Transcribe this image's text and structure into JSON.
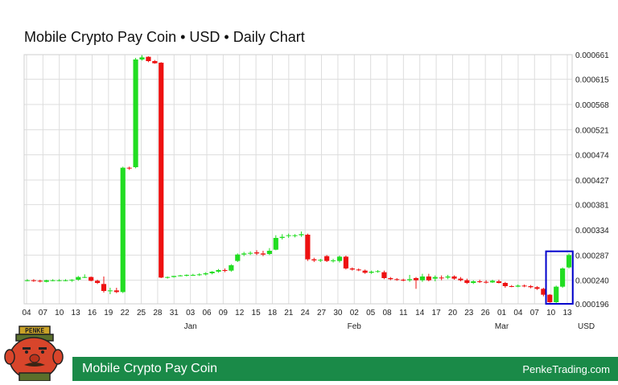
{
  "title": "Mobile Crypto Pay Coin • USD • Daily Chart",
  "footer": {
    "coin_name": "Mobile Crypto Pay Coin",
    "site": "PenkeTrading.com"
  },
  "mascot": {
    "badge_text": "PENKE"
  },
  "colors": {
    "up": "#22dd22",
    "down": "#ee1111",
    "highlight": "#0000cc",
    "grid": "#dddddd",
    "footer_bg": "#1a8a48"
  },
  "chart_data": {
    "type": "candlestick",
    "currency_label": "USD",
    "y_ticks": [
      "0.000196",
      "0.000240",
      "0.000287",
      "0.000334",
      "0.000381",
      "0.000427",
      "0.000474",
      "0.000521",
      "0.000568",
      "0.000615",
      "0.000661"
    ],
    "ylim": [
      0.000196,
      0.000661
    ],
    "grid": true,
    "x_tick_labels": [
      "04",
      "07",
      "10",
      "13",
      "16",
      "19",
      "22",
      "25",
      "28",
      "31",
      "03",
      "06",
      "09",
      "12",
      "15",
      "18",
      "21",
      "24",
      "27",
      "30",
      "02",
      "05",
      "08",
      "11",
      "14",
      "17",
      "20",
      "23",
      "26",
      "01",
      "04",
      "07",
      "10",
      "13"
    ],
    "month_labels": [
      {
        "label": "Jan",
        "at_index": 10
      },
      {
        "label": "Feb",
        "at_index": 20
      },
      {
        "label": "Mar",
        "at_index": 29
      }
    ],
    "candles": [
      {
        "o": 0.00024,
        "h": 0.000242,
        "l": 0.000238,
        "c": 0.00024
      },
      {
        "o": 0.00024,
        "h": 0.000242,
        "l": 0.000237,
        "c": 0.000239
      },
      {
        "o": 0.000239,
        "h": 0.000241,
        "l": 0.000236,
        "c": 0.000238
      },
      {
        "o": 0.000237,
        "h": 0.000241,
        "l": 0.000236,
        "c": 0.00024
      },
      {
        "o": 0.00024,
        "h": 0.000242,
        "l": 0.000238,
        "c": 0.00024
      },
      {
        "o": 0.00024,
        "h": 0.000242,
        "l": 0.000238,
        "c": 0.00024
      },
      {
        "o": 0.00024,
        "h": 0.000242,
        "l": 0.000238,
        "c": 0.00024
      },
      {
        "o": 0.00024,
        "h": 0.000242,
        "l": 0.000237,
        "c": 0.000241
      },
      {
        "o": 0.000241,
        "h": 0.000248,
        "l": 0.000239,
        "c": 0.000246
      },
      {
        "o": 0.000246,
        "h": 0.000251,
        "l": 0.000244,
        "c": 0.000246
      },
      {
        "o": 0.000246,
        "h": 0.000247,
        "l": 0.000238,
        "c": 0.000239
      },
      {
        "o": 0.000239,
        "h": 0.000241,
        "l": 0.000233,
        "c": 0.000235
      },
      {
        "o": 0.000233,
        "h": 0.000247,
        "l": 0.000217,
        "c": 0.00022
      },
      {
        "o": 0.00022,
        "h": 0.000226,
        "l": 0.000214,
        "c": 0.000221
      },
      {
        "o": 0.000221,
        "h": 0.000226,
        "l": 0.000216,
        "c": 0.000218
      },
      {
        "o": 0.000218,
        "h": 0.000452,
        "l": 0.000216,
        "c": 0.00045
      },
      {
        "o": 0.00045,
        "h": 0.000452,
        "l": 0.000446,
        "c": 0.000449
      },
      {
        "o": 0.000451,
        "h": 0.000655,
        "l": 0.000449,
        "c": 0.000652
      },
      {
        "o": 0.000652,
        "h": 0.00066,
        "l": 0.00065,
        "c": 0.000656
      },
      {
        "o": 0.000657,
        "h": 0.000658,
        "l": 0.000647,
        "c": 0.000649
      },
      {
        "o": 0.000649,
        "h": 0.000651,
        "l": 0.000644,
        "c": 0.000645
      },
      {
        "o": 0.000646,
        "h": 0.000647,
        "l": 0.000244,
        "c": 0.000245
      },
      {
        "o": 0.000245,
        "h": 0.000247,
        "l": 0.000243,
        "c": 0.000246
      },
      {
        "o": 0.000246,
        "h": 0.000248,
        "l": 0.000245,
        "c": 0.000248
      },
      {
        "o": 0.000248,
        "h": 0.00025,
        "l": 0.000247,
        "c": 0.000249
      },
      {
        "o": 0.000249,
        "h": 0.000251,
        "l": 0.000247,
        "c": 0.00025
      },
      {
        "o": 0.00025,
        "h": 0.000252,
        "l": 0.000248,
        "c": 0.00025
      },
      {
        "o": 0.00025,
        "h": 0.000253,
        "l": 0.000248,
        "c": 0.000251
      },
      {
        "o": 0.000251,
        "h": 0.000255,
        "l": 0.000249,
        "c": 0.000253
      },
      {
        "o": 0.000253,
        "h": 0.000257,
        "l": 0.000251,
        "c": 0.000256
      },
      {
        "o": 0.000256,
        "h": 0.000261,
        "l": 0.000254,
        "c": 0.000259
      },
      {
        "o": 0.000259,
        "h": 0.000262,
        "l": 0.000255,
        "c": 0.000258
      },
      {
        "o": 0.000258,
        "h": 0.00027,
        "l": 0.000256,
        "c": 0.000268
      },
      {
        "o": 0.000276,
        "h": 0.00029,
        "l": 0.000274,
        "c": 0.000288
      },
      {
        "o": 0.000288,
        "h": 0.000293,
        "l": 0.000285,
        "c": 0.00029
      },
      {
        "o": 0.00029,
        "h": 0.000294,
        "l": 0.000287,
        "c": 0.000291
      },
      {
        "o": 0.000292,
        "h": 0.000296,
        "l": 0.000287,
        "c": 0.00029
      },
      {
        "o": 0.00029,
        "h": 0.000295,
        "l": 0.000285,
        "c": 0.000288
      },
      {
        "o": 0.000289,
        "h": 0.0003,
        "l": 0.000287,
        "c": 0.000295
      },
      {
        "o": 0.000297,
        "h": 0.000324,
        "l": 0.000296,
        "c": 0.000319
      },
      {
        "o": 0.000319,
        "h": 0.000326,
        "l": 0.000316,
        "c": 0.000321
      },
      {
        "o": 0.000323,
        "h": 0.000327,
        "l": 0.000319,
        "c": 0.000324
      },
      {
        "o": 0.000323,
        "h": 0.000326,
        "l": 0.00032,
        "c": 0.000324
      },
      {
        "o": 0.000324,
        "h": 0.000331,
        "l": 0.000321,
        "c": 0.000326
      },
      {
        "o": 0.000325,
        "h": 0.000327,
        "l": 0.000276,
        "c": 0.000279
      },
      {
        "o": 0.000279,
        "h": 0.000282,
        "l": 0.000274,
        "c": 0.000277
      },
      {
        "o": 0.000277,
        "h": 0.00028,
        "l": 0.000274,
        "c": 0.000278
      },
      {
        "o": 0.000285,
        "h": 0.000287,
        "l": 0.000274,
        "c": 0.000276
      },
      {
        "o": 0.000276,
        "h": 0.00028,
        "l": 0.000273,
        "c": 0.000277
      },
      {
        "o": 0.000276,
        "h": 0.000286,
        "l": 0.000273,
        "c": 0.000284
      },
      {
        "o": 0.000284,
        "h": 0.000286,
        "l": 0.00026,
        "c": 0.000262
      },
      {
        "o": 0.000262,
        "h": 0.000264,
        "l": 0.000258,
        "c": 0.00026
      },
      {
        "o": 0.00026,
        "h": 0.000262,
        "l": 0.000257,
        "c": 0.000259
      },
      {
        "o": 0.000258,
        "h": 0.00026,
        "l": 0.000252,
        "c": 0.000254
      },
      {
        "o": 0.000254,
        "h": 0.000258,
        "l": 0.000252,
        "c": 0.000256
      },
      {
        "o": 0.000256,
        "h": 0.000259,
        "l": 0.000254,
        "c": 0.000257
      },
      {
        "o": 0.000255,
        "h": 0.000258,
        "l": 0.000242,
        "c": 0.000244
      },
      {
        "o": 0.000244,
        "h": 0.000246,
        "l": 0.00024,
        "c": 0.000242
      },
      {
        "o": 0.000242,
        "h": 0.000244,
        "l": 0.000239,
        "c": 0.000241
      },
      {
        "o": 0.000241,
        "h": 0.000243,
        "l": 0.000238,
        "c": 0.00024
      },
      {
        "o": 0.00024,
        "h": 0.00025,
        "l": 0.000237,
        "c": 0.000242
      },
      {
        "o": 0.000244,
        "h": 0.000246,
        "l": 0.000224,
        "c": 0.00024
      },
      {
        "o": 0.00024,
        "h": 0.000252,
        "l": 0.000237,
        "c": 0.000247
      },
      {
        "o": 0.000247,
        "h": 0.000252,
        "l": 0.000238,
        "c": 0.00024
      },
      {
        "o": 0.000243,
        "h": 0.000249,
        "l": 0.000238,
        "c": 0.000246
      },
      {
        "o": 0.000245,
        "h": 0.000249,
        "l": 0.00024,
        "c": 0.000244
      },
      {
        "o": 0.000245,
        "h": 0.00025,
        "l": 0.000242,
        "c": 0.000247
      },
      {
        "o": 0.000247,
        "h": 0.000249,
        "l": 0.000241,
        "c": 0.000243
      },
      {
        "o": 0.000243,
        "h": 0.000246,
        "l": 0.000238,
        "c": 0.00024
      },
      {
        "o": 0.00024,
        "h": 0.000243,
        "l": 0.000233,
        "c": 0.000235
      },
      {
        "o": 0.000235,
        "h": 0.00024,
        "l": 0.000233,
        "c": 0.000238
      },
      {
        "o": 0.000238,
        "h": 0.000241,
        "l": 0.000235,
        "c": 0.000237
      },
      {
        "o": 0.000237,
        "h": 0.00024,
        "l": 0.000234,
        "c": 0.000236
      },
      {
        "o": 0.000236,
        "h": 0.000241,
        "l": 0.000235,
        "c": 0.000239
      },
      {
        "o": 0.000238,
        "h": 0.000241,
        "l": 0.000234,
        "c": 0.000235
      },
      {
        "o": 0.000235,
        "h": 0.000237,
        "l": 0.000226,
        "c": 0.000229
      },
      {
        "o": 0.000229,
        "h": 0.000231,
        "l": 0.000227,
        "c": 0.000228
      },
      {
        "o": 0.000228,
        "h": 0.000232,
        "l": 0.000227,
        "c": 0.00023
      },
      {
        "o": 0.00023,
        "h": 0.000232,
        "l": 0.000227,
        "c": 0.000229
      },
      {
        "o": 0.000229,
        "h": 0.000231,
        "l": 0.000225,
        "c": 0.000227
      },
      {
        "o": 0.000227,
        "h": 0.000229,
        "l": 0.000222,
        "c": 0.000224
      },
      {
        "o": 0.000224,
        "h": 0.000226,
        "l": 0.00021,
        "c": 0.000213
      },
      {
        "o": 0.000213,
        "h": 0.000214,
        "l": 0.000198,
        "c": 0.000199
      },
      {
        "o": 0.000199,
        "h": 0.00023,
        "l": 0.000197,
        "c": 0.000228
      },
      {
        "o": 0.000228,
        "h": 0.000264,
        "l": 0.000226,
        "c": 0.000262
      },
      {
        "o": 0.000264,
        "h": 0.00029,
        "l": 0.000262,
        "c": 0.000287
      }
    ],
    "highlight": {
      "from_index": 82,
      "to_index": 85,
      "low": 0.000196,
      "high": 0.000294
    }
  }
}
